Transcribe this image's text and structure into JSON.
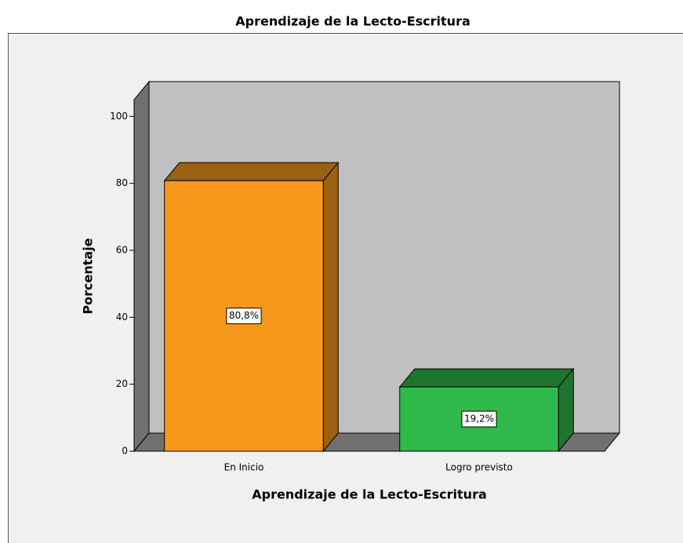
{
  "chart_data": {
    "type": "bar3d",
    "title": "Aprendizaje de la Lecto-Escritura",
    "x_label": "Aprendizaje de la Lecto-Escritura",
    "y_label": "Porcentaje",
    "categories": [
      "En Inicio",
      "Logro previsto"
    ],
    "values": [
      80.8,
      19.2
    ],
    "value_labels": [
      "80,8%",
      "19,2%"
    ],
    "colors": [
      "#f7981d",
      "#2fb94a"
    ],
    "ylim": [
      0,
      105
    ],
    "yticks": [
      0,
      20,
      40,
      60,
      80,
      100
    ]
  }
}
